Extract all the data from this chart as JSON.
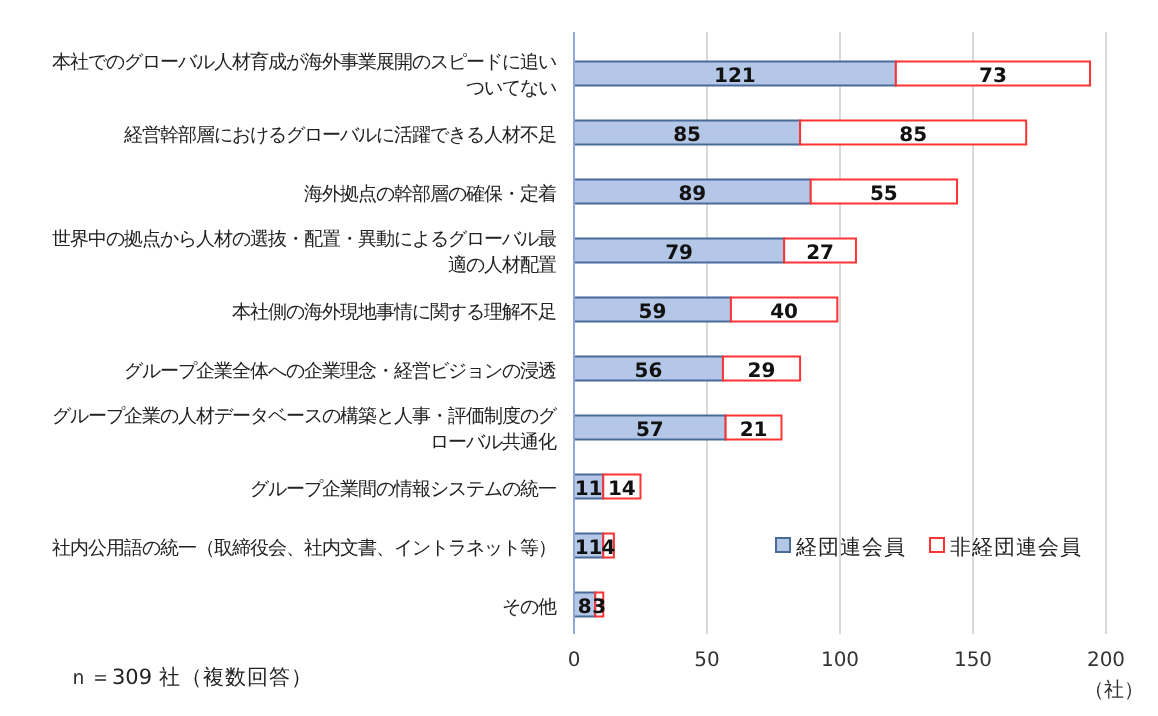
{
  "chart_data": {
    "type": "bar",
    "orientation": "horizontal",
    "stacked": true,
    "categories": [
      "本社でのグローバル人材育成が海外事業展開のスピードに追いついてない",
      "経営幹部層におけるグローバルに活躍できる人材不足",
      "海外拠点の幹部層の確保・定着",
      "世界中の拠点から人材の選抜・配置・異動によるグローバル最適の人材配置",
      "本社側の海外現地事情に関する理解不足",
      "グループ企業全体への企業理念・経営ビジョンの浸透",
      "グループ企業の人材データベースの構築と人事・評価制度のグローバル共通化",
      "グループ企業間の情報システムの統一",
      "社内公用語の統一（取締役会、社内文書、イントラネット等）",
      "その他"
    ],
    "series": [
      {
        "name": "経団連会員",
        "color": "#b4c7e7",
        "values": [
          121,
          85,
          89,
          79,
          59,
          56,
          57,
          11,
          11,
          8
        ]
      },
      {
        "name": "非経団連会員",
        "color": "#ff3333",
        "values": [
          73,
          85,
          55,
          27,
          40,
          29,
          21,
          14,
          4,
          3
        ]
      }
    ],
    "xlim": [
      0,
      200
    ],
    "xticks": [
      0,
      50,
      100,
      150,
      200
    ],
    "xlabel": "（社）",
    "grid": "x",
    "legend": "right",
    "data_labels": true,
    "annotations": [
      "ｎ＝309 社（複数回答）"
    ]
  }
}
